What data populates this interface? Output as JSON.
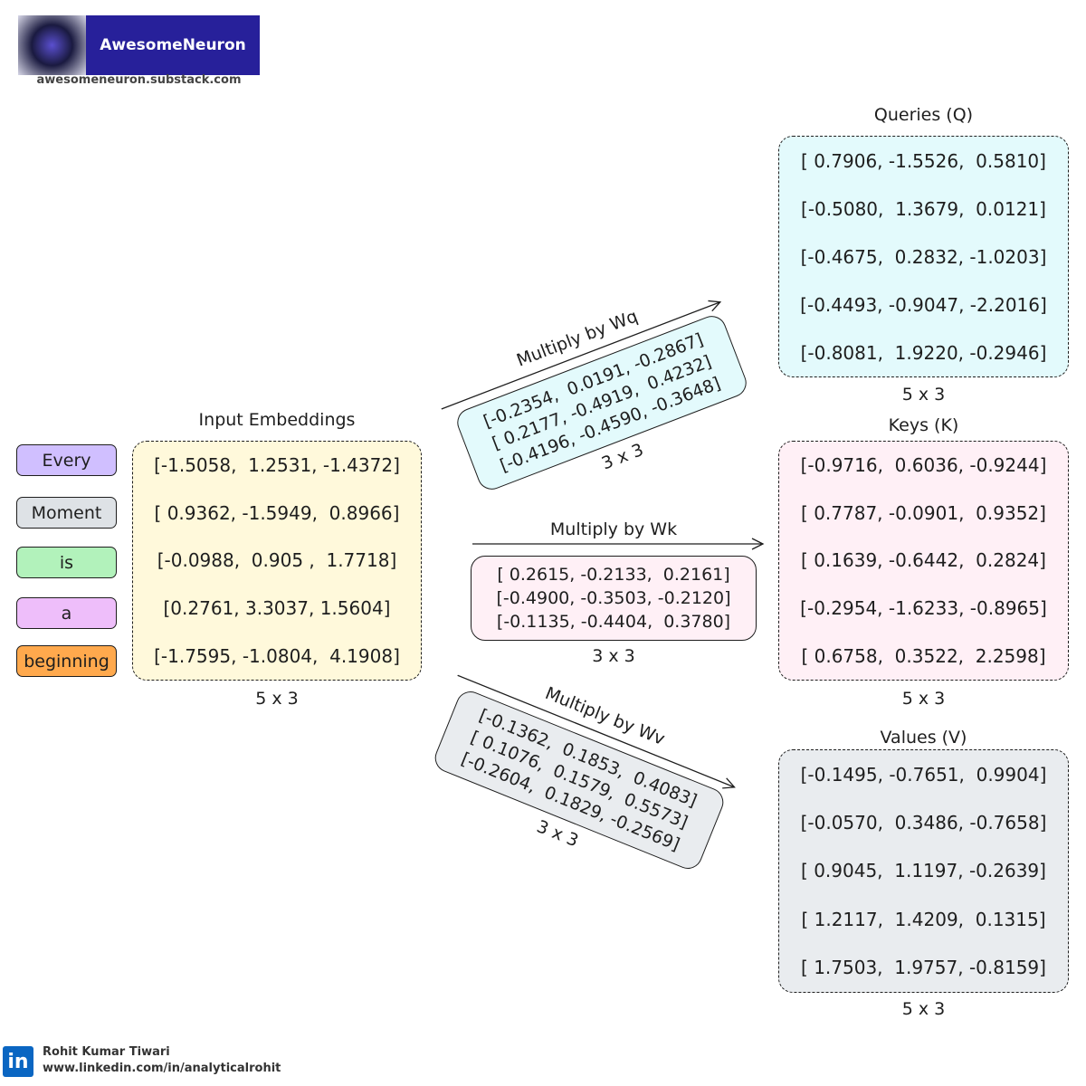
{
  "header": {
    "brand": "AwesomeNeuron",
    "url": "awesomeneuron.substack.com"
  },
  "tokens": [
    "Every",
    "Moment",
    "is",
    "a",
    "beginning"
  ],
  "input": {
    "title": "Input Embeddings",
    "rows": [
      "[-1.5058,  1.2531, -1.4372]",
      "[ 0.9362, -1.5949,  0.8966]",
      "[-0.0988,  0.905 ,  1.7718]",
      "[0.2761, 3.3037, 1.5604]",
      "[-1.7595, -1.0804,  4.1908]"
    ],
    "shape": "5 x 3"
  },
  "weights": [
    {
      "label": "Multiply by Wq",
      "rows": [
        "[-0.2354,  0.0191, -0.2867]",
        "[ 0.2177, -0.4919,  0.4232]",
        "[-0.4196, -0.4590, -0.3648]"
      ],
      "shape": "3 x 3"
    },
    {
      "label": "Multiply by Wk",
      "rows": [
        "[ 0.2615, -0.2133,  0.2161]",
        "[-0.4900, -0.3503, -0.2120]",
        "[-0.1135, -0.4404,  0.3780]"
      ],
      "shape": "3 x 3"
    },
    {
      "label": "Multiply by Wv",
      "rows": [
        "[-0.1362,  0.1853,  0.4083]",
        "[ 0.1076,  0.1579,  0.5573]",
        "[-0.2604,  0.1829, -0.2569]"
      ],
      "shape": "3 x 3"
    }
  ],
  "outputs": [
    {
      "title": "Queries (Q)",
      "rows": [
        "[ 0.7906, -1.5526,  0.5810]",
        "[-0.5080,  1.3679,  0.0121]",
        "[-0.4675,  0.2832, -1.0203]",
        "[-0.4493, -0.9047, -2.2016]",
        "[-0.8081,  1.9220, -0.2946]"
      ],
      "shape": "5 x 3"
    },
    {
      "title": "Keys (K)",
      "rows": [
        "[-0.9716,  0.6036, -0.9244]",
        "[ 0.7787, -0.0901,  0.9352]",
        "[ 0.1639, -0.6442,  0.2824]",
        "[-0.2954, -1.6233, -0.8965]",
        "[ 0.6758,  0.3522,  2.2598]"
      ],
      "shape": "5 x 3"
    },
    {
      "title": "Values (V)",
      "rows": [
        "[-0.1495, -0.7651,  0.9904]",
        "[-0.0570,  0.3486, -0.7658]",
        "[ 0.9045,  1.1197, -0.2639]",
        "[ 1.2117,  1.4209,  0.1315]",
        "[ 1.7503,  1.9757, -0.8159]"
      ],
      "shape": "5 x 3"
    }
  ],
  "footer": {
    "name": "Rohit Kumar Tiwari",
    "url": "www.linkedin.com/in/analyticalrohit"
  }
}
